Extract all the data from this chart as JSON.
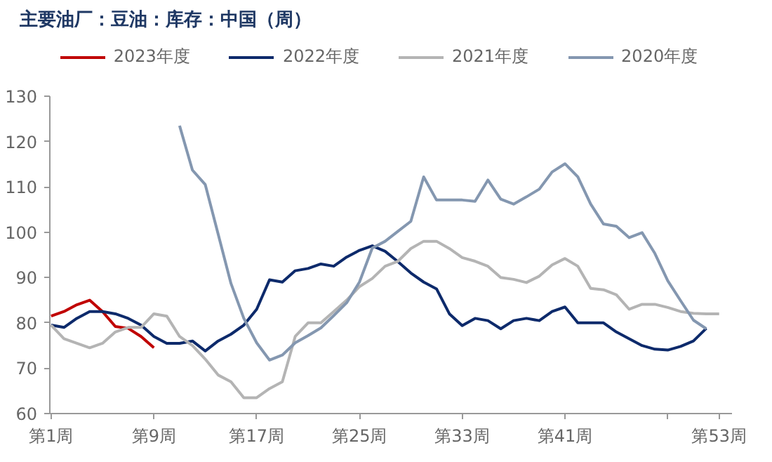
{
  "chart_data": {
    "type": "line",
    "title": "主要油厂：豆油：库存：中国（周）",
    "legend": "top",
    "grid": false,
    "marker": "none",
    "line_style": "solid",
    "categories": [
      "第1周",
      null,
      null,
      null,
      null,
      null,
      null,
      null,
      "第9周",
      null,
      null,
      null,
      null,
      null,
      null,
      null,
      "第17周",
      null,
      null,
      null,
      null,
      null,
      null,
      null,
      "第25周",
      null,
      null,
      null,
      null,
      null,
      null,
      null,
      "第33周",
      null,
      null,
      null,
      null,
      null,
      null,
      null,
      "第41周",
      null,
      null,
      null,
      null,
      null,
      null,
      null,
      null,
      null,
      null,
      null,
      "第53周"
    ],
    "ylim": [
      60,
      130
    ],
    "yticks": [
      60,
      70,
      80,
      90,
      100,
      110,
      120,
      130
    ],
    "series": [
      {
        "name": "2023年度",
        "color": "#c00000",
        "values": [
          81.5,
          82.5,
          84,
          85,
          82.5,
          79.2,
          78.8,
          77,
          74.5,
          null,
          null,
          null,
          null,
          null,
          null,
          null,
          null,
          null,
          null,
          null,
          null,
          null,
          null,
          null,
          null,
          null,
          null,
          null,
          null,
          null,
          null,
          null,
          null,
          null,
          null,
          null,
          null,
          null,
          null,
          null,
          null,
          null,
          null,
          null,
          null,
          null,
          null,
          null,
          null,
          null,
          null,
          null,
          null
        ]
      },
      {
        "name": "2022年度",
        "color": "#0d2a6b",
        "values": [
          79.5,
          79,
          81,
          82.5,
          82.5,
          82,
          81,
          79.5,
          77,
          75.5,
          75.5,
          76,
          73.8,
          76,
          77.5,
          79.5,
          83,
          89.5,
          89,
          91.5,
          92,
          93,
          92.5,
          94.5,
          96,
          97,
          95.8,
          93.5,
          91,
          89,
          87.5,
          82,
          79.4,
          81,
          80.5,
          78.7,
          80.5,
          81,
          80.5,
          82.5,
          83.5,
          80,
          80,
          80,
          78,
          76.5,
          75,
          74.2,
          74,
          74.8,
          76,
          78.8,
          null
        ]
      },
      {
        "name": "2021年度",
        "color": "#b4b4b4",
        "values": [
          79.5,
          76.5,
          75.5,
          74.5,
          75.5,
          78,
          79,
          79,
          82,
          81.5,
          77,
          75,
          72,
          68.5,
          67,
          63.5,
          63.5,
          65.5,
          67,
          77,
          80,
          80,
          82.5,
          85,
          88,
          89.8,
          92.5,
          93.6,
          96.4,
          98,
          98,
          96.4,
          94.4,
          93.6,
          92.5,
          90,
          89.6,
          88.9,
          90.3,
          92.8,
          94.2,
          92.5,
          87.6,
          87.3,
          86.2,
          83,
          84.1,
          84.1,
          83.4,
          82.5,
          82.1,
          82,
          82
        ]
      },
      {
        "name": "2020年度",
        "color": "#8497b0",
        "values": [
          null,
          null,
          null,
          null,
          null,
          null,
          null,
          null,
          null,
          null,
          123.5,
          113.7,
          110.5,
          99.6,
          88.7,
          81,
          75.6,
          71.8,
          72.9,
          75.6,
          77.2,
          78.9,
          81.6,
          84.4,
          89,
          96.5,
          98,
          100.2,
          102.4,
          112.2,
          107.1,
          107.1,
          107.1,
          106.8,
          111.5,
          107.3,
          106.2,
          107.8,
          109.5,
          113.3,
          115.1,
          112.2,
          106.2,
          101.8,
          101.3,
          98.8,
          99.9,
          95.3,
          89.3,
          84.9,
          80.6,
          78.7,
          null
        ]
      }
    ]
  }
}
